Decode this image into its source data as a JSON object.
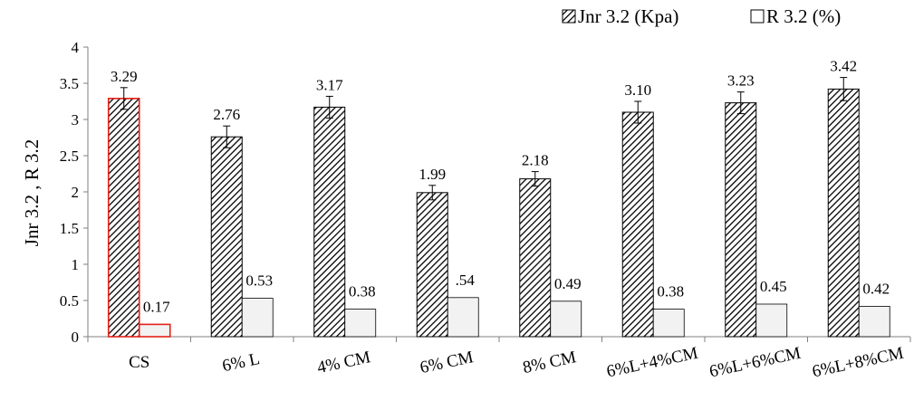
{
  "chart_data": {
    "type": "bar",
    "title": "",
    "xlabel": "",
    "ylabel": "Jnr 3.2 , R 3.2",
    "ylim": [
      0,
      4
    ],
    "yticks": [
      "0",
      "0.5",
      "1",
      "1.5",
      "2",
      "2.5",
      "3",
      "3.5",
      "4"
    ],
    "grid": false,
    "legend_position": "top-right",
    "categories": [
      "CS",
      "6% L",
      "4% CM",
      "6% CM",
      "8% CM",
      "6%L+4%CM",
      "6%L+6%CM",
      "6%L+8%CM"
    ],
    "series": [
      {
        "name": "Jnr 3.2 (Kpa)",
        "pattern": "diagonal-hatch",
        "values": [
          3.29,
          2.76,
          3.17,
          1.99,
          2.18,
          3.1,
          3.23,
          3.42
        ],
        "labels": [
          "3.29",
          "2.76",
          "3.17",
          "1.99",
          "2.18",
          "3.10",
          "3.23",
          "3.42"
        ],
        "error": [
          0.15,
          0.15,
          0.15,
          0.1,
          0.1,
          0.15,
          0.15,
          0.16
        ]
      },
      {
        "name": "R 3.2 (%)",
        "pattern": "light-fill",
        "values": [
          0.17,
          0.53,
          0.38,
          0.54,
          0.49,
          0.38,
          0.45,
          0.42
        ],
        "labels": [
          "0.17",
          "0.53",
          "0.38",
          ".54",
          "0.49",
          "0.38",
          "0.45",
          "0.42"
        ]
      }
    ],
    "highlight": {
      "category_index": 0,
      "color": "#e32119"
    },
    "colors": {
      "hatch_fill": "#ffffff",
      "hatch_line": "#000000",
      "light_fill": "#f2f2f2",
      "axis": "#808080"
    }
  }
}
